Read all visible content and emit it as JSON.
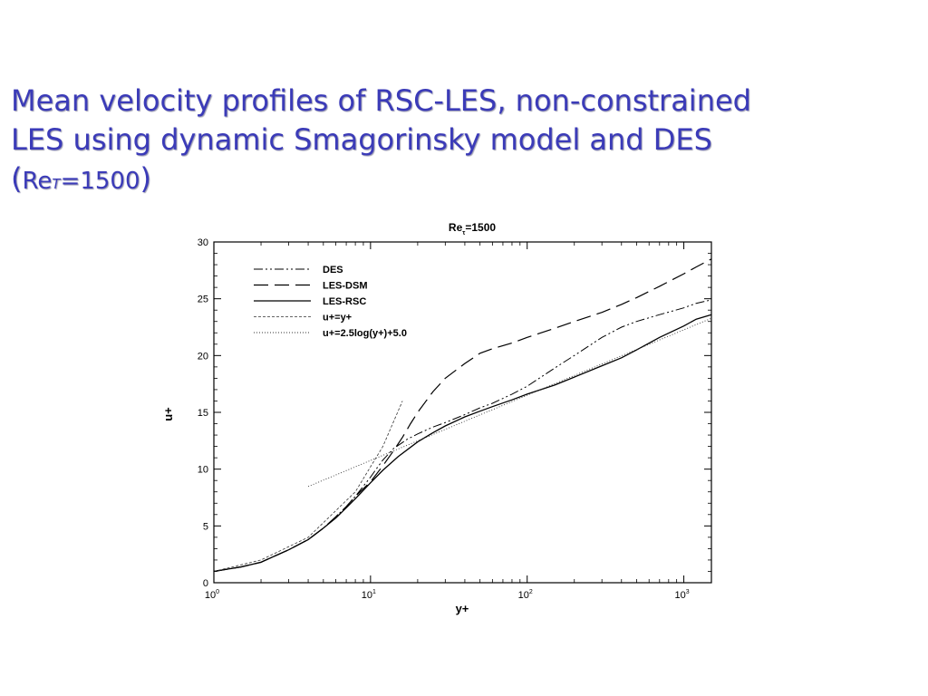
{
  "slide": {
    "title_line1": "Mean velocity profiles of RSC-LES, non-constrained",
    "title_line2": "LES using dynamic Smagorinsky model and DES",
    "title_line3_open": "(",
    "title_line3_re": "Re",
    "title_line3_sub": "T",
    "title_line3_value": "=1500",
    "title_line3_close": ")"
  },
  "chart_data": {
    "type": "line",
    "title_base": "Re",
    "title_sub": "τ",
    "title_value": "=1500",
    "xlabel": "y+",
    "ylabel": "u+",
    "xscale": "log",
    "xlim": [
      1,
      1500
    ],
    "ylim": [
      0,
      30
    ],
    "x_ticks": [
      {
        "base": "10",
        "exp": "0",
        "value": 1
      },
      {
        "base": "10",
        "exp": "1",
        "value": 10
      },
      {
        "base": "10",
        "exp": "2",
        "value": 100
      },
      {
        "base": "10",
        "exp": "3",
        "value": 1000
      }
    ],
    "y_ticks": [
      "0",
      "5",
      "10",
      "15",
      "20",
      "25",
      "30"
    ],
    "grid": false,
    "legend_position": "top-left",
    "series": [
      {
        "name": "DES",
        "dash": "dash-dot-dot",
        "points": [
          [
            1,
            1.0
          ],
          [
            1.5,
            1.4
          ],
          [
            2,
            1.8
          ],
          [
            3,
            2.9
          ],
          [
            4,
            3.8
          ],
          [
            5,
            4.8
          ],
          [
            6,
            5.8
          ],
          [
            7,
            6.7
          ],
          [
            8,
            7.6
          ],
          [
            9,
            8.5
          ],
          [
            10,
            9.3
          ],
          [
            11,
            10.1
          ],
          [
            12,
            10.8
          ],
          [
            14,
            11.8
          ],
          [
            17,
            12.6
          ],
          [
            20,
            13.1
          ],
          [
            25,
            13.7
          ],
          [
            30,
            14.1
          ],
          [
            40,
            14.8
          ],
          [
            50,
            15.4
          ],
          [
            60,
            15.8
          ],
          [
            80,
            16.6
          ],
          [
            100,
            17.3
          ],
          [
            150,
            18.9
          ],
          [
            200,
            20.0
          ],
          [
            300,
            21.6
          ],
          [
            400,
            22.5
          ],
          [
            500,
            23.0
          ],
          [
            700,
            23.6
          ],
          [
            1000,
            24.2
          ],
          [
            1200,
            24.6
          ],
          [
            1500,
            24.9
          ]
        ]
      },
      {
        "name": "LES-DSM",
        "dash": "long-dash",
        "points": [
          [
            1,
            1.0
          ],
          [
            1.5,
            1.4
          ],
          [
            2,
            1.8
          ],
          [
            3,
            2.9
          ],
          [
            4,
            3.8
          ],
          [
            5,
            4.8
          ],
          [
            6,
            5.8
          ],
          [
            7,
            6.7
          ],
          [
            8,
            7.6
          ],
          [
            10,
            8.9
          ],
          [
            12,
            10.3
          ],
          [
            14,
            11.6
          ],
          [
            16,
            12.8
          ],
          [
            18,
            14.0
          ],
          [
            20,
            15.0
          ],
          [
            25,
            16.8
          ],
          [
            30,
            18.0
          ],
          [
            40,
            19.3
          ],
          [
            50,
            20.2
          ],
          [
            60,
            20.6
          ],
          [
            80,
            21.1
          ],
          [
            100,
            21.6
          ],
          [
            150,
            22.4
          ],
          [
            200,
            23.0
          ],
          [
            300,
            23.8
          ],
          [
            400,
            24.5
          ],
          [
            500,
            25.1
          ],
          [
            700,
            26.1
          ],
          [
            1000,
            27.2
          ],
          [
            1200,
            27.8
          ],
          [
            1500,
            28.5
          ]
        ]
      },
      {
        "name": "LES-RSC",
        "dash": "solid",
        "points": [
          [
            1,
            1.0
          ],
          [
            1.5,
            1.4
          ],
          [
            2,
            1.8
          ],
          [
            3,
            2.9
          ],
          [
            4,
            3.8
          ],
          [
            5,
            4.8
          ],
          [
            6,
            5.7
          ],
          [
            7,
            6.6
          ],
          [
            8,
            7.4
          ],
          [
            10,
            8.8
          ],
          [
            12,
            9.9
          ],
          [
            15,
            11.1
          ],
          [
            20,
            12.4
          ],
          [
            25,
            13.2
          ],
          [
            30,
            13.8
          ],
          [
            40,
            14.6
          ],
          [
            50,
            15.1
          ],
          [
            60,
            15.5
          ],
          [
            80,
            16.1
          ],
          [
            100,
            16.6
          ],
          [
            150,
            17.4
          ],
          [
            200,
            18.1
          ],
          [
            300,
            19.1
          ],
          [
            400,
            19.8
          ],
          [
            500,
            20.5
          ],
          [
            700,
            21.6
          ],
          [
            1000,
            22.6
          ],
          [
            1200,
            23.2
          ],
          [
            1500,
            23.6
          ]
        ]
      },
      {
        "name": "u+=y+",
        "dash": "short-dash",
        "points": [
          [
            1,
            1
          ],
          [
            2,
            2
          ],
          [
            4,
            4
          ],
          [
            8,
            8
          ],
          [
            12,
            12
          ],
          [
            16,
            16
          ]
        ]
      },
      {
        "name": "u+=2.5log(y+)+5.0",
        "dash": "dot",
        "points": [
          [
            4,
            8.47
          ],
          [
            10,
            10.76
          ],
          [
            30,
            13.5
          ],
          [
            100,
            16.51
          ],
          [
            300,
            19.26
          ],
          [
            1000,
            22.27
          ],
          [
            1500,
            23.28
          ]
        ]
      }
    ]
  }
}
